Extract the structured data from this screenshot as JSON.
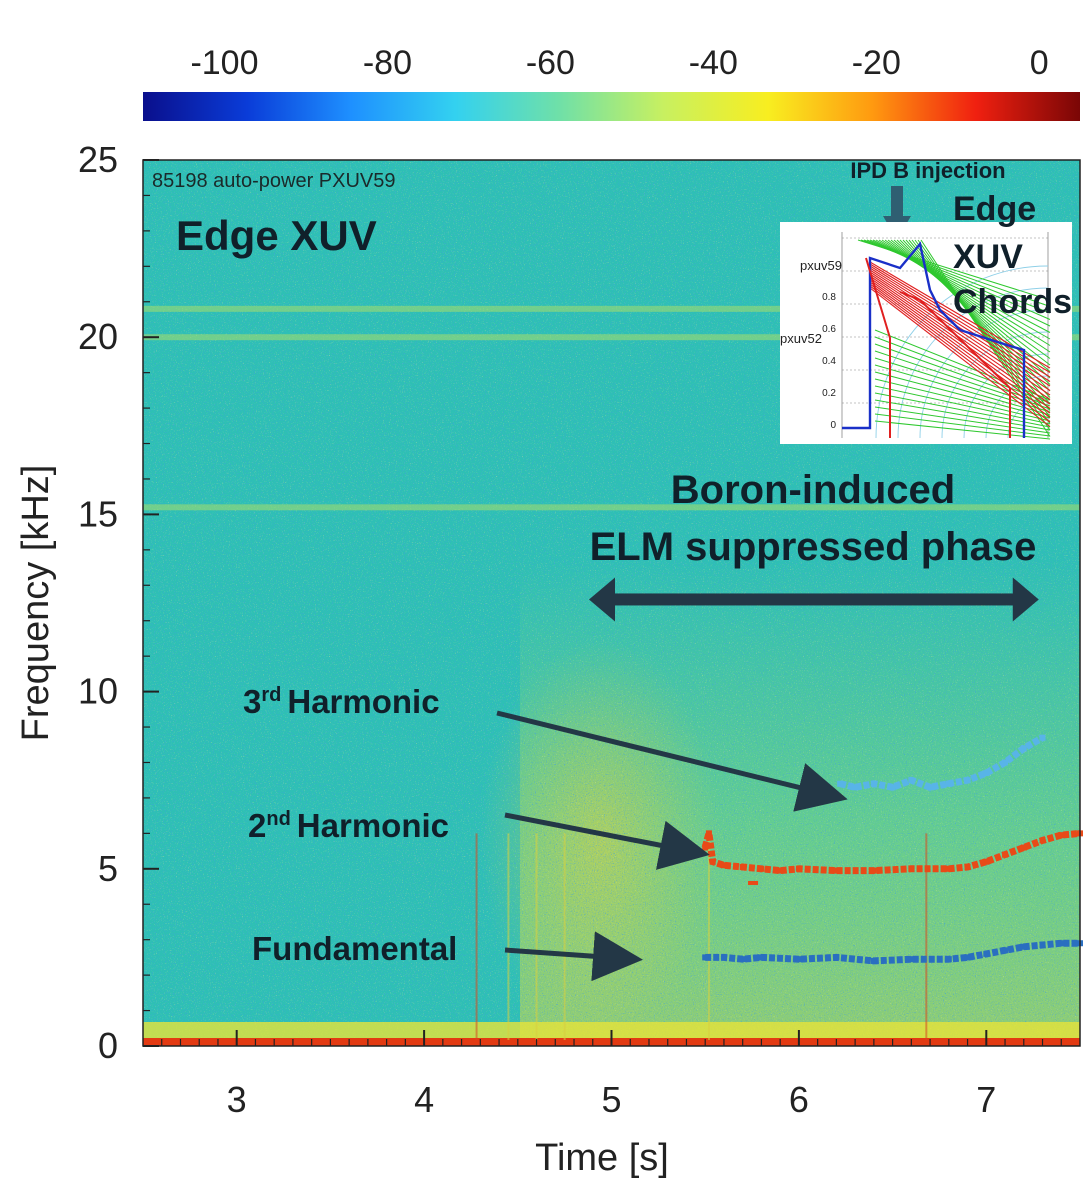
{
  "chart_data": {
    "type": "heatmap",
    "title": "85198 auto-power PXUV59",
    "panel_label": "Edge XUV",
    "xlabel": "Time [s]",
    "ylabel": "Frequency [kHz]",
    "xlim": [
      2.5,
      7.5
    ],
    "ylim": [
      0,
      25
    ],
    "x_ticks": [
      3,
      4,
      5,
      6,
      7
    ],
    "y_ticks": [
      0,
      5,
      10,
      15,
      20,
      25
    ],
    "colorbar": {
      "range": [
        -110,
        5
      ],
      "ticks": [
        -100,
        -80,
        -60,
        -40,
        -20,
        0
      ],
      "colors": [
        "#0a0f8c",
        "#0a3cd8",
        "#1e90ff",
        "#33d1f0",
        "#6fe0a8",
        "#c8f060",
        "#f8ee20",
        "#ff9a10",
        "#f02010",
        "#7a0606"
      ]
    },
    "background_color": "#2ec0b4",
    "horizontal_bands_khz": [
      20.0,
      20.8,
      15.2
    ],
    "annotations": {
      "phase_label_line1": "Boron-induced",
      "phase_label_line2": "ELM suppressed phase",
      "phase_range_s": [
        4.88,
        7.28
      ],
      "phase_arrow_frequency_khz": 12.6,
      "third_harmonic": {
        "sup": "rd",
        "text": "Harmonic",
        "num": "3"
      },
      "second_harmonic": {
        "sup": "nd",
        "text": "Harmonic",
        "num": "2"
      },
      "fundamental": "Fundamental"
    },
    "series": [
      {
        "color": "#58b4e8",
        "x": [
          6.22,
          6.3,
          6.4,
          6.5,
          6.6,
          6.7,
          6.8,
          6.9,
          7.0,
          7.1,
          7.2,
          7.3
        ],
        "y": [
          7.4,
          7.3,
          7.4,
          7.3,
          7.5,
          7.3,
          7.4,
          7.5,
          7.7,
          8.0,
          8.4,
          8.7
        ]
      },
      {
        "color": "#e84a18",
        "x": [
          5.5,
          5.52,
          5.54,
          5.6,
          5.7,
          5.8,
          5.9,
          6.0,
          6.2,
          6.4,
          6.6,
          6.8,
          6.9,
          7.0,
          7.1,
          7.2,
          7.3,
          7.4,
          7.5
        ],
        "y": [
          5.6,
          6.0,
          5.2,
          5.1,
          5.05,
          5.0,
          4.95,
          5.0,
          4.95,
          4.95,
          5.0,
          5.0,
          5.05,
          5.2,
          5.4,
          5.6,
          5.8,
          5.95,
          6.0
        ],
        "outlier": {
          "x": 5.75,
          "y": 4.6
        }
      },
      {
        "color": "#2a6fc0",
        "x": [
          5.5,
          5.6,
          5.7,
          5.8,
          6.0,
          6.2,
          6.4,
          6.6,
          6.8,
          6.9,
          7.0,
          7.1,
          7.2,
          7.3,
          7.4,
          7.5
        ],
        "y": [
          2.5,
          2.5,
          2.45,
          2.5,
          2.45,
          2.5,
          2.4,
          2.45,
          2.45,
          2.5,
          2.6,
          2.7,
          2.8,
          2.85,
          2.9,
          2.9
        ]
      }
    ],
    "inset": {
      "title": "IPD B injection",
      "label_line1": "Edge",
      "label_line2": "XUV",
      "label_line3": "Chords",
      "chord_label_1": "pxuv59",
      "chord_label_2": "pxuv52",
      "y_ticks": [
        "0.8",
        "0.6",
        "0.4",
        "0.2",
        "0"
      ]
    }
  }
}
